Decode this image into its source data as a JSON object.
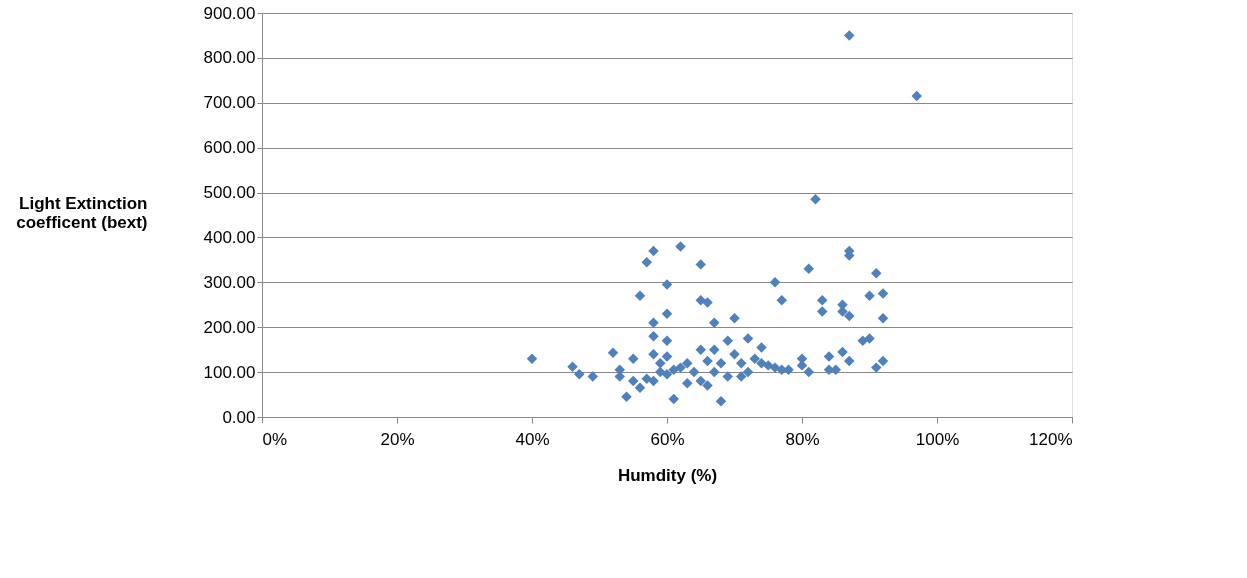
{
  "chart_data": {
    "type": "scatter",
    "xlabel": "Humdity (%)",
    "ylabel": "Light Extinction coefficent (bext)",
    "x": [
      40,
      46,
      47,
      49,
      52,
      53,
      53,
      54,
      55,
      55,
      56,
      56,
      57,
      57,
      58,
      58,
      58,
      58,
      58,
      59,
      59,
      60,
      60,
      60,
      60,
      60,
      61,
      61,
      62,
      62,
      63,
      63,
      64,
      65,
      65,
      65,
      65,
      66,
      66,
      66,
      67,
      67,
      67,
      68,
      68,
      69,
      69,
      70,
      70,
      71,
      71,
      72,
      72,
      73,
      74,
      74,
      75,
      76,
      76,
      77,
      77,
      78,
      80,
      80,
      81,
      81,
      82,
      83,
      83,
      84,
      84,
      85,
      86,
      86,
      86,
      87,
      87,
      87,
      87,
      87,
      89,
      90,
      90,
      91,
      91,
      92,
      92,
      92,
      97
    ],
    "series": [
      {
        "color": "#4f81bd",
        "values": [
          130,
          112,
          95,
          90,
          143,
          105,
          90,
          45,
          130,
          80,
          270,
          65,
          345,
          85,
          370,
          210,
          180,
          140,
          80,
          120,
          100,
          295,
          230,
          170,
          135,
          95,
          40,
          105,
          380,
          110,
          120,
          75,
          100,
          340,
          260,
          150,
          80,
          255,
          125,
          70,
          210,
          150,
          100,
          35,
          120,
          170,
          90,
          220,
          140,
          120,
          90,
          175,
          100,
          130,
          155,
          120,
          115,
          300,
          110,
          260,
          105,
          105,
          130,
          115,
          330,
          100,
          485,
          260,
          235,
          135,
          105,
          105,
          250,
          235,
          145,
          850,
          370,
          360,
          225,
          125,
          170,
          270,
          175,
          320,
          110,
          275,
          220,
          125,
          715
        ]
      }
    ],
    "xlim": [
      0,
      120
    ],
    "ylim": [
      0,
      900
    ],
    "xticks": [
      {
        "value": 0,
        "label": "0%"
      },
      {
        "value": 20,
        "label": "20%"
      },
      {
        "value": 40,
        "label": "40%"
      },
      {
        "value": 60,
        "label": "60%"
      },
      {
        "value": 80,
        "label": "80%"
      },
      {
        "value": 100,
        "label": "100%"
      },
      {
        "value": 120,
        "label": "120%"
      }
    ],
    "yticks": [
      {
        "value": 0,
        "label": "0.00"
      },
      {
        "value": 100,
        "label": "100.00"
      },
      {
        "value": 200,
        "label": "200.00"
      },
      {
        "value": 300,
        "label": "300.00"
      },
      {
        "value": 400,
        "label": "400.00"
      },
      {
        "value": 500,
        "label": "500.00"
      },
      {
        "value": 600,
        "label": "600.00"
      },
      {
        "value": 700,
        "label": "700.00"
      },
      {
        "value": 800,
        "label": "800.00"
      },
      {
        "value": 900,
        "label": "900.00"
      }
    ],
    "grid": "y",
    "marker": "diamond"
  }
}
